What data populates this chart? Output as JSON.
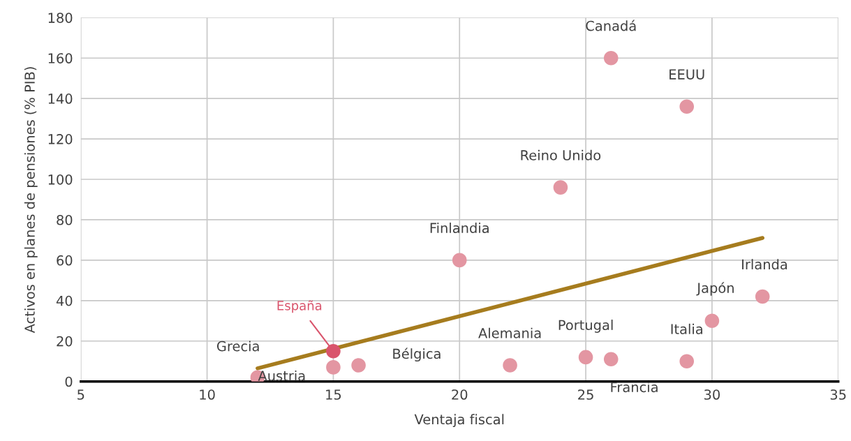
{
  "chart_data": {
    "type": "scatter",
    "xlabel": "Ventaja fiscal",
    "ylabel": "Activos en planes de pensiones (% PIB)",
    "xlim": [
      5,
      35
    ],
    "xticks": [
      5,
      10,
      15,
      20,
      25,
      30,
      35
    ],
    "ylim": [
      0,
      180
    ],
    "yticks": [
      0,
      20,
      40,
      60,
      80,
      100,
      120,
      140,
      160,
      180
    ],
    "grid": true,
    "marker": "circle",
    "series": [
      {
        "color": "#e396a2",
        "x": [
          26,
          29,
          24,
          20,
          32,
          30,
          25,
          29,
          22,
          16,
          12,
          15,
          26
        ],
        "values": [
          160,
          136,
          96,
          60,
          42,
          30,
          12,
          10,
          8,
          8,
          2,
          7,
          11
        ]
      },
      {
        "name": "España",
        "color": "#d9546c",
        "x": [
          15
        ],
        "values": [
          15
        ]
      },
      {
        "type": "line",
        "color": "#a67c1e",
        "x": [
          12,
          32
        ],
        "values": [
          6.5,
          71
        ],
        "marker": "none"
      }
    ],
    "annotations": [
      {
        "text": "Canadá",
        "x": 26,
        "y": 160
      },
      {
        "text": "EEUU",
        "x": 29,
        "y": 136
      },
      {
        "text": "Reino Unido",
        "x": 24,
        "y": 96
      },
      {
        "text": "Finlandia",
        "x": 20,
        "y": 60
      },
      {
        "text": "Irlanda",
        "x": 32,
        "y": 42
      },
      {
        "text": "Japón",
        "x": 30,
        "y": 30
      },
      {
        "text": "Portugal",
        "x": 25,
        "y": 12
      },
      {
        "text": "Italia",
        "x": 29,
        "y": 10
      },
      {
        "text": "Alemania",
        "x": 22,
        "y": 8
      },
      {
        "text": "Bélgica",
        "x": 16,
        "y": 8
      },
      {
        "text": "Grecia",
        "x": 12,
        "y": 2
      },
      {
        "text": "Austria",
        "x": 15,
        "y": 7
      },
      {
        "text": "Francia",
        "x": 26,
        "y": 11
      }
    ]
  }
}
